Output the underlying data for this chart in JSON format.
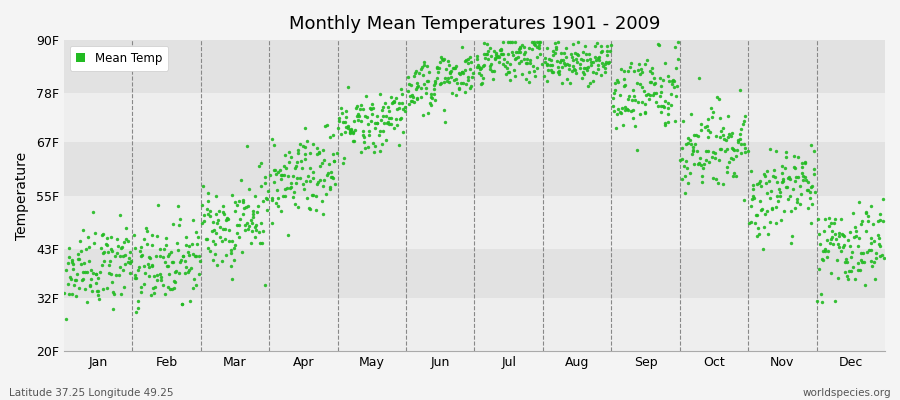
{
  "title": "Monthly Mean Temperatures 1901 - 2009",
  "ylabel": "Temperature",
  "xlabel_labels": [
    "Jan",
    "Feb",
    "Mar",
    "Apr",
    "May",
    "Jun",
    "Jul",
    "Aug",
    "Sep",
    "Oct",
    "Nov",
    "Dec"
  ],
  "ytick_labels": [
    "20F",
    "32F",
    "43F",
    "55F",
    "67F",
    "78F",
    "90F"
  ],
  "ytick_values": [
    20,
    32,
    43,
    55,
    67,
    78,
    90
  ],
  "ylim": [
    20,
    90
  ],
  "dot_color": "#22BB22",
  "bg_color": "#f4f4f4",
  "plot_bg_color": "#ebebeb",
  "band_light": "#eeeeee",
  "band_dark": "#e2e2e2",
  "grid_color": "#aaaaaa",
  "legend_label": "Mean Temp",
  "footer_left": "Latitude 37.25 Longitude 49.25",
  "footer_right": "worldspecies.org",
  "monthly_mean_F": [
    38,
    39,
    48,
    59,
    70,
    80,
    85,
    84,
    77,
    65,
    54,
    42
  ],
  "monthly_std_F": [
    4.5,
    4.5,
    5.5,
    4.5,
    3.5,
    3.0,
    2.5,
    2.5,
    4.0,
    4.5,
    4.5,
    4.5
  ],
  "n_years": 109,
  "warming_trend": [
    0.025,
    0.025,
    0.025,
    0.025,
    0.025,
    0.02,
    0.02,
    0.02,
    0.025,
    0.025,
    0.025,
    0.025
  ]
}
